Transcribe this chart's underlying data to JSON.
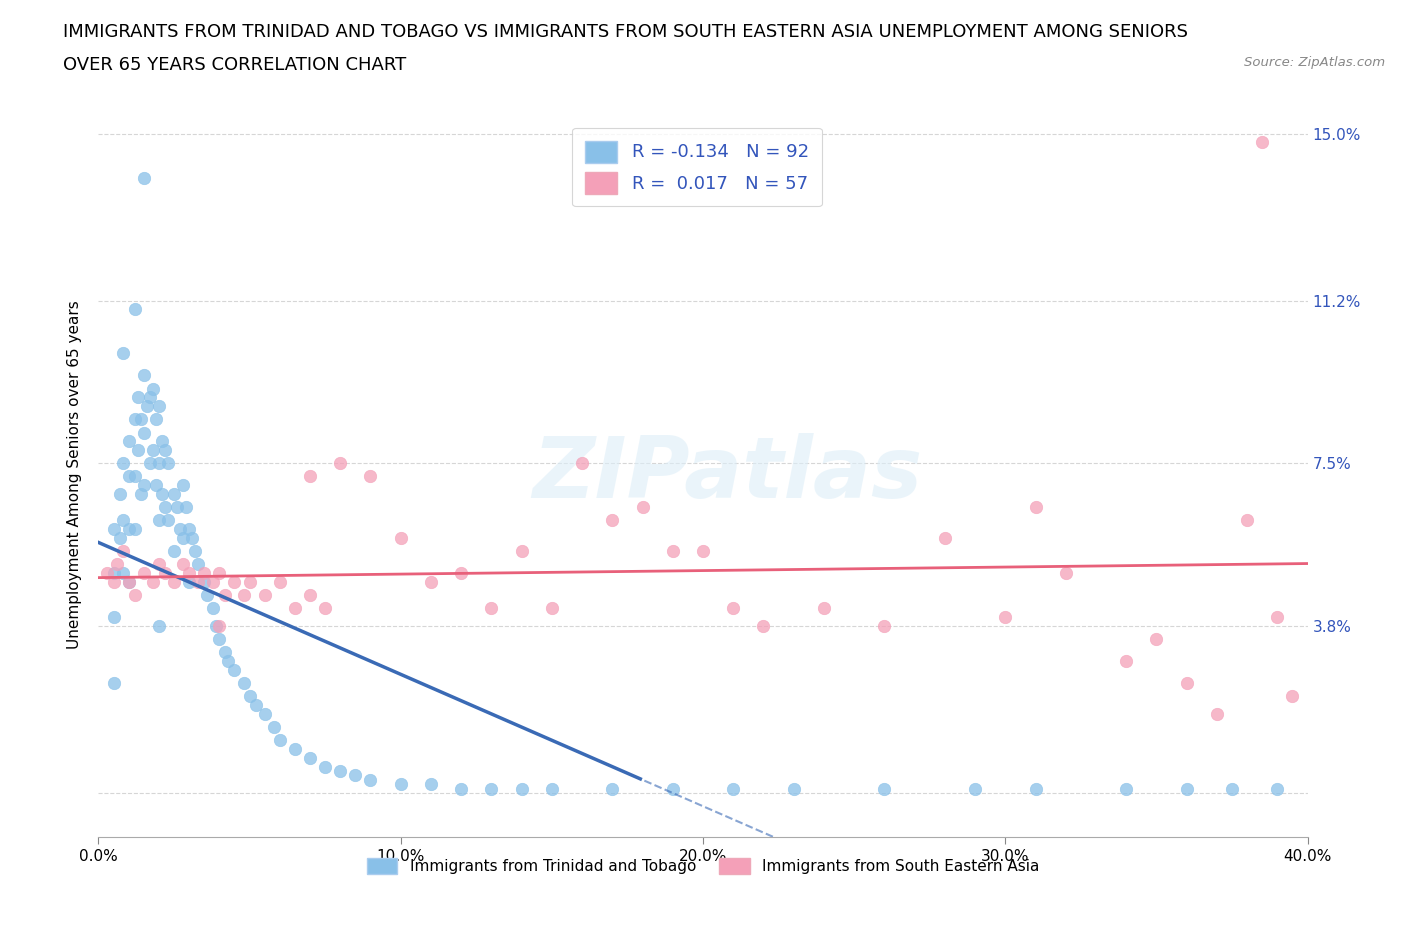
{
  "title_line1": "IMMIGRANTS FROM TRINIDAD AND TOBAGO VS IMMIGRANTS FROM SOUTH EASTERN ASIA UNEMPLOYMENT AMONG SENIORS",
  "title_line2": "OVER 65 YEARS CORRELATION CHART",
  "source": "Source: ZipAtlas.com",
  "ylabel": "Unemployment Among Seniors over 65 years",
  "xlim": [
    0.0,
    0.4
  ],
  "ylim": [
    -0.01,
    0.155
  ],
  "yticks": [
    0.0,
    0.038,
    0.075,
    0.112,
    0.15
  ],
  "ytick_labels": [
    "",
    "3.8%",
    "7.5%",
    "11.2%",
    "15.0%"
  ],
  "xticks": [
    0.0,
    0.1,
    0.2,
    0.3,
    0.4
  ],
  "xtick_labels": [
    "0.0%",
    "10.0%",
    "20.0%",
    "30.0%",
    "40.0%"
  ],
  "series1_color": "#89c0e8",
  "series2_color": "#f4a0b8",
  "series1_label": "Immigrants from Trinidad and Tobago",
  "series2_label": "Immigrants from South Eastern Asia",
  "R1": -0.134,
  "N1": 92,
  "R2": 0.017,
  "N2": 57,
  "trend1_color": "#3a6ab5",
  "trend2_color": "#e8607a",
  "watermark": "ZIPatlas",
  "background_color": "#ffffff",
  "dashed_grid_color": "#cccccc",
  "legend_R_color": "#3355bb",
  "title_fontsize": 13,
  "axis_label_fontsize": 11,
  "tick_label_fontsize": 11
}
